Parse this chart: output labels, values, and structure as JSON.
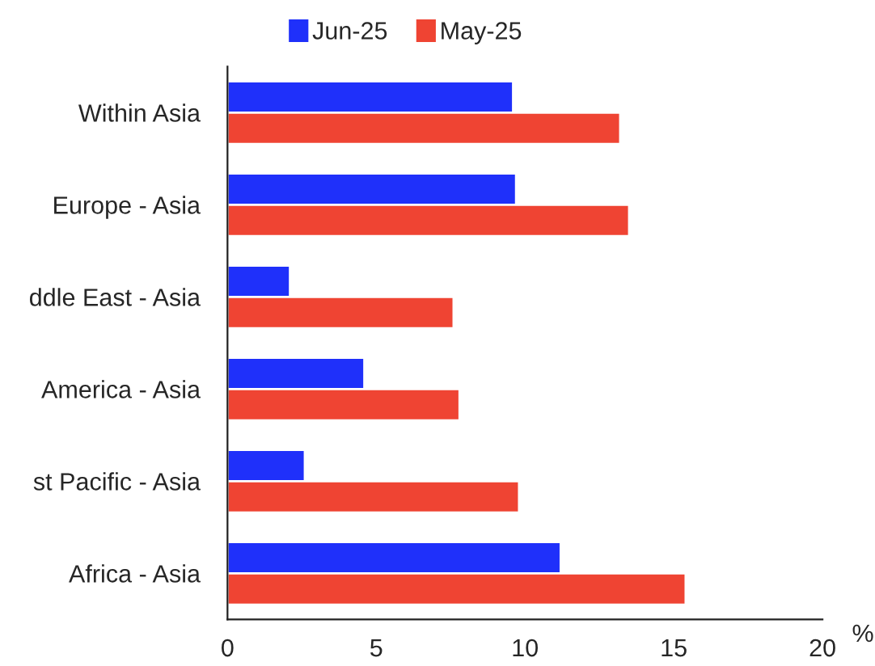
{
  "chart_data": {
    "type": "bar",
    "orientation": "horizontal",
    "xlabel": "%",
    "categories": [
      "Within Asia",
      "Europe - Asia",
      "ddle East - Asia",
      "America - Asia",
      "st Pacific - Asia",
      "Africa - Asia"
    ],
    "series": [
      {
        "name": "Jun-25",
        "color": "#1f30fa",
        "values": [
          9.6,
          9.7,
          2.1,
          4.6,
          2.6,
          11.2
        ]
      },
      {
        "name": "May-25",
        "color": "#ef4433",
        "values": [
          13.2,
          13.5,
          7.6,
          7.8,
          9.8,
          15.4
        ]
      }
    ],
    "xlim": [
      0,
      20
    ],
    "xticks": [
      0,
      5,
      10,
      15,
      20
    ],
    "grid": false,
    "legend": "top"
  }
}
